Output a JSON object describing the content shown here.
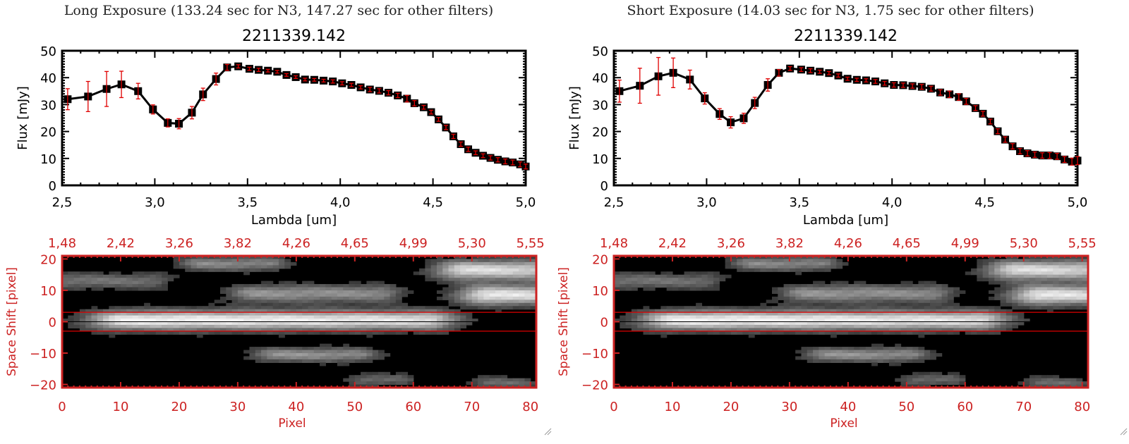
{
  "panels": [
    {
      "id": "long",
      "exposure_title": "Long Exposure (133.24 sec for N3, 147.27 sec for other filters)",
      "object_id": "2211339.142"
    },
    {
      "id": "short",
      "exposure_title": "Short Exposure (14.03 sec for N3, 1.75 sec for other filters)",
      "object_id": "2211339.142"
    }
  ],
  "colors": {
    "axis": "#000000",
    "errorbar": "#e00000",
    "image_axis": "#cc2222",
    "aperture_line": "#dd0000"
  },
  "chart_data": [
    {
      "type": "line",
      "panel": "long",
      "title": "2211339.142",
      "xlabel": "Lambda [um]",
      "ylabel": "Flux [mJy]",
      "xlim": [
        2.5,
        5.0
      ],
      "ylim": [
        0,
        50
      ],
      "xticks": [
        "2.5",
        "3.0",
        "3.5",
        "4.0",
        "4.5",
        "5.0"
      ],
      "yticks": [
        "0",
        "10",
        "20",
        "30",
        "40",
        "50"
      ],
      "series": [
        {
          "name": "flux",
          "x": [
            2.53,
            2.64,
            2.74,
            2.82,
            2.91,
            2.99,
            3.07,
            3.13,
            3.2,
            3.26,
            3.33,
            3.39,
            3.45,
            3.51,
            3.56,
            3.61,
            3.66,
            3.71,
            3.76,
            3.81,
            3.86,
            3.91,
            3.96,
            4.01,
            4.06,
            4.11,
            4.16,
            4.21,
            4.26,
            4.31,
            4.36,
            4.4,
            4.45,
            4.49,
            4.53,
            4.57,
            4.61,
            4.65,
            4.69,
            4.73,
            4.77,
            4.81,
            4.85,
            4.89,
            4.93,
            4.97,
            5.0
          ],
          "y": [
            32.0,
            33.0,
            35.8,
            37.5,
            35.0,
            28.2,
            23.2,
            22.9,
            27.0,
            33.8,
            39.5,
            43.8,
            44.2,
            43.3,
            42.9,
            42.6,
            42.2,
            41.0,
            40.2,
            39.3,
            39.2,
            38.9,
            38.6,
            37.9,
            37.3,
            36.4,
            35.6,
            35.1,
            34.4,
            33.4,
            32.2,
            30.5,
            29.0,
            27.2,
            24.5,
            21.5,
            18.2,
            15.3,
            13.4,
            12.1,
            11.0,
            10.2,
            9.5,
            8.9,
            8.5,
            7.8,
            7.0
          ],
          "err": [
            3.9,
            5.6,
            6.5,
            4.9,
            2.9,
            1.7,
            1.5,
            1.9,
            2.3,
            2.3,
            2.2,
            1.1,
            0.6,
            0.6,
            0.6,
            0.5,
            0.5,
            0.5,
            0.5,
            0.5,
            0.5,
            0.5,
            0.6,
            0.6,
            0.6,
            0.6,
            0.8,
            0.8,
            0.8,
            0.8,
            1.2,
            1.0,
            0.7,
            0.7,
            0.7,
            0.8,
            0.8,
            0.8,
            0.8,
            0.7,
            0.7,
            0.8,
            0.8,
            0.9,
            0.9,
            0.9,
            0.9
          ]
        }
      ]
    },
    {
      "type": "line",
      "panel": "short",
      "title": "2211339.142",
      "xlabel": "Lambda [um]",
      "ylabel": "Flux [mJy]",
      "xlim": [
        2.5,
        5.0
      ],
      "ylim": [
        0,
        50
      ],
      "xticks": [
        "2.5",
        "3.0",
        "3.5",
        "4.0",
        "4.5",
        "5.0"
      ],
      "yticks": [
        "0",
        "10",
        "20",
        "30",
        "40",
        "50"
      ],
      "series": [
        {
          "name": "flux",
          "x": [
            2.53,
            2.64,
            2.74,
            2.82,
            2.91,
            2.99,
            3.07,
            3.13,
            3.2,
            3.26,
            3.33,
            3.39,
            3.45,
            3.51,
            3.56,
            3.61,
            3.66,
            3.71,
            3.76,
            3.81,
            3.86,
            3.91,
            3.96,
            4.01,
            4.06,
            4.11,
            4.16,
            4.21,
            4.26,
            4.31,
            4.36,
            4.4,
            4.45,
            4.49,
            4.53,
            4.57,
            4.61,
            4.65,
            4.69,
            4.73,
            4.77,
            4.81,
            4.85,
            4.89,
            4.93,
            4.97,
            5.0
          ],
          "y": [
            35.0,
            37.0,
            40.5,
            41.8,
            39.3,
            32.3,
            26.5,
            23.4,
            24.9,
            30.6,
            37.3,
            41.8,
            43.4,
            43.0,
            42.6,
            42.2,
            41.7,
            40.8,
            39.6,
            39.2,
            39.0,
            38.6,
            37.9,
            37.3,
            37.2,
            36.9,
            36.6,
            35.9,
            34.5,
            33.8,
            32.8,
            31.2,
            28.7,
            26.6,
            23.7,
            20.1,
            17.0,
            14.5,
            12.7,
            11.9,
            11.4,
            11.1,
            11.1,
            10.8,
            9.6,
            8.8,
            9.2
          ],
          "err": [
            4.1,
            6.5,
            7.0,
            5.5,
            3.5,
            2.1,
            2.0,
            2.1,
            1.9,
            2.1,
            2.3,
            1.2,
            0.7,
            0.7,
            0.7,
            0.6,
            0.6,
            0.6,
            0.6,
            0.6,
            0.6,
            0.7,
            0.7,
            0.8,
            0.8,
            0.8,
            0.9,
            0.9,
            1.0,
            1.2,
            1.2,
            1.1,
            0.9,
            0.9,
            0.9,
            0.9,
            1.0,
            1.0,
            1.0,
            1.0,
            1.0,
            1.0,
            1.1,
            1.1,
            1.1,
            1.3,
            1.5
          ]
        }
      ]
    },
    {
      "type": "heatmap",
      "panel": "long",
      "xlabel": "Pixel",
      "ylabel": "Space Shift [pixel]",
      "xlim": [
        0,
        81
      ],
      "ylim": [
        -21,
        21
      ],
      "xticks": [
        "0",
        "10",
        "20",
        "30",
        "40",
        "50",
        "60",
        "70",
        "80"
      ],
      "yticks": [
        "-20",
        "-10",
        "0",
        "10",
        "20"
      ],
      "top_xticks": [
        "1.48",
        "2.42",
        "3.26",
        "3.82",
        "4.26",
        "4.65",
        "4.99",
        "5.30",
        "5.55"
      ],
      "aperture": [
        -3,
        3
      ],
      "sources": [
        {
          "x": 11,
          "y": 0.5,
          "amp": 1.0,
          "sx": 5,
          "sy": 2.2,
          "tail": 52
        },
        {
          "x": 69,
          "y": 16.5,
          "amp": 0.9,
          "sx": 4,
          "sy": 2.2,
          "tail": 12
        },
        {
          "x": 73,
          "y": 8.5,
          "amp": 0.95,
          "sx": 4,
          "sy": 2.2,
          "tail": 9
        },
        {
          "x": 33,
          "y": 9,
          "amp": 0.55,
          "sx": 3.5,
          "sy": 2.0,
          "tail": 22
        },
        {
          "x": 24,
          "y": 18.5,
          "amp": 0.5,
          "sx": 3,
          "sy": 1.6,
          "tail": 12
        },
        {
          "x": 37,
          "y": -10.5,
          "amp": 0.55,
          "sx": 3.5,
          "sy": 1.6,
          "tail": 14
        },
        {
          "x": 1,
          "y": 13,
          "amp": 0.4,
          "sx": 3,
          "sy": 1.8,
          "tail": 15
        },
        {
          "x": 52,
          "y": -18.5,
          "amp": 0.35,
          "sx": 2.5,
          "sy": 1.4,
          "tail": 6
        },
        {
          "x": 73,
          "y": -19.5,
          "amp": 0.35,
          "sx": 2.5,
          "sy": 1.4,
          "tail": 6
        }
      ]
    },
    {
      "type": "heatmap",
      "panel": "short",
      "xlabel": "Pixel",
      "ylabel": "Space Shift [pixel]",
      "xlim": [
        0,
        81
      ],
      "ylim": [
        -21,
        21
      ],
      "xticks": [
        "0",
        "10",
        "20",
        "30",
        "40",
        "50",
        "60",
        "70",
        "80"
      ],
      "yticks": [
        "-20",
        "-10",
        "0",
        "10",
        "20"
      ],
      "top_xticks": [
        "1.48",
        "2.42",
        "3.26",
        "3.82",
        "4.26",
        "4.65",
        "4.99",
        "5.30",
        "5.55"
      ],
      "aperture": [
        -3,
        3
      ],
      "sources": [
        {
          "x": 11,
          "y": 0.5,
          "amp": 1.0,
          "sx": 5,
          "sy": 2.2,
          "tail": 52
        },
        {
          "x": 69,
          "y": 16.5,
          "amp": 0.9,
          "sx": 4,
          "sy": 2.2,
          "tail": 12
        },
        {
          "x": 73,
          "y": 8.5,
          "amp": 0.95,
          "sx": 4,
          "sy": 2.2,
          "tail": 9
        },
        {
          "x": 33,
          "y": 9,
          "amp": 0.55,
          "sx": 3.5,
          "sy": 2.0,
          "tail": 22
        },
        {
          "x": 24,
          "y": 18.5,
          "amp": 0.5,
          "sx": 3,
          "sy": 1.6,
          "tail": 12
        },
        {
          "x": 37,
          "y": -10.5,
          "amp": 0.55,
          "sx": 3.5,
          "sy": 1.6,
          "tail": 14
        },
        {
          "x": 1,
          "y": 13,
          "amp": 0.4,
          "sx": 3,
          "sy": 1.8,
          "tail": 15
        },
        {
          "x": 52,
          "y": -18.5,
          "amp": 0.35,
          "sx": 2.5,
          "sy": 1.4,
          "tail": 6
        },
        {
          "x": 73,
          "y": -19.5,
          "amp": 0.35,
          "sx": 2.5,
          "sy": 1.4,
          "tail": 6
        }
      ]
    }
  ]
}
